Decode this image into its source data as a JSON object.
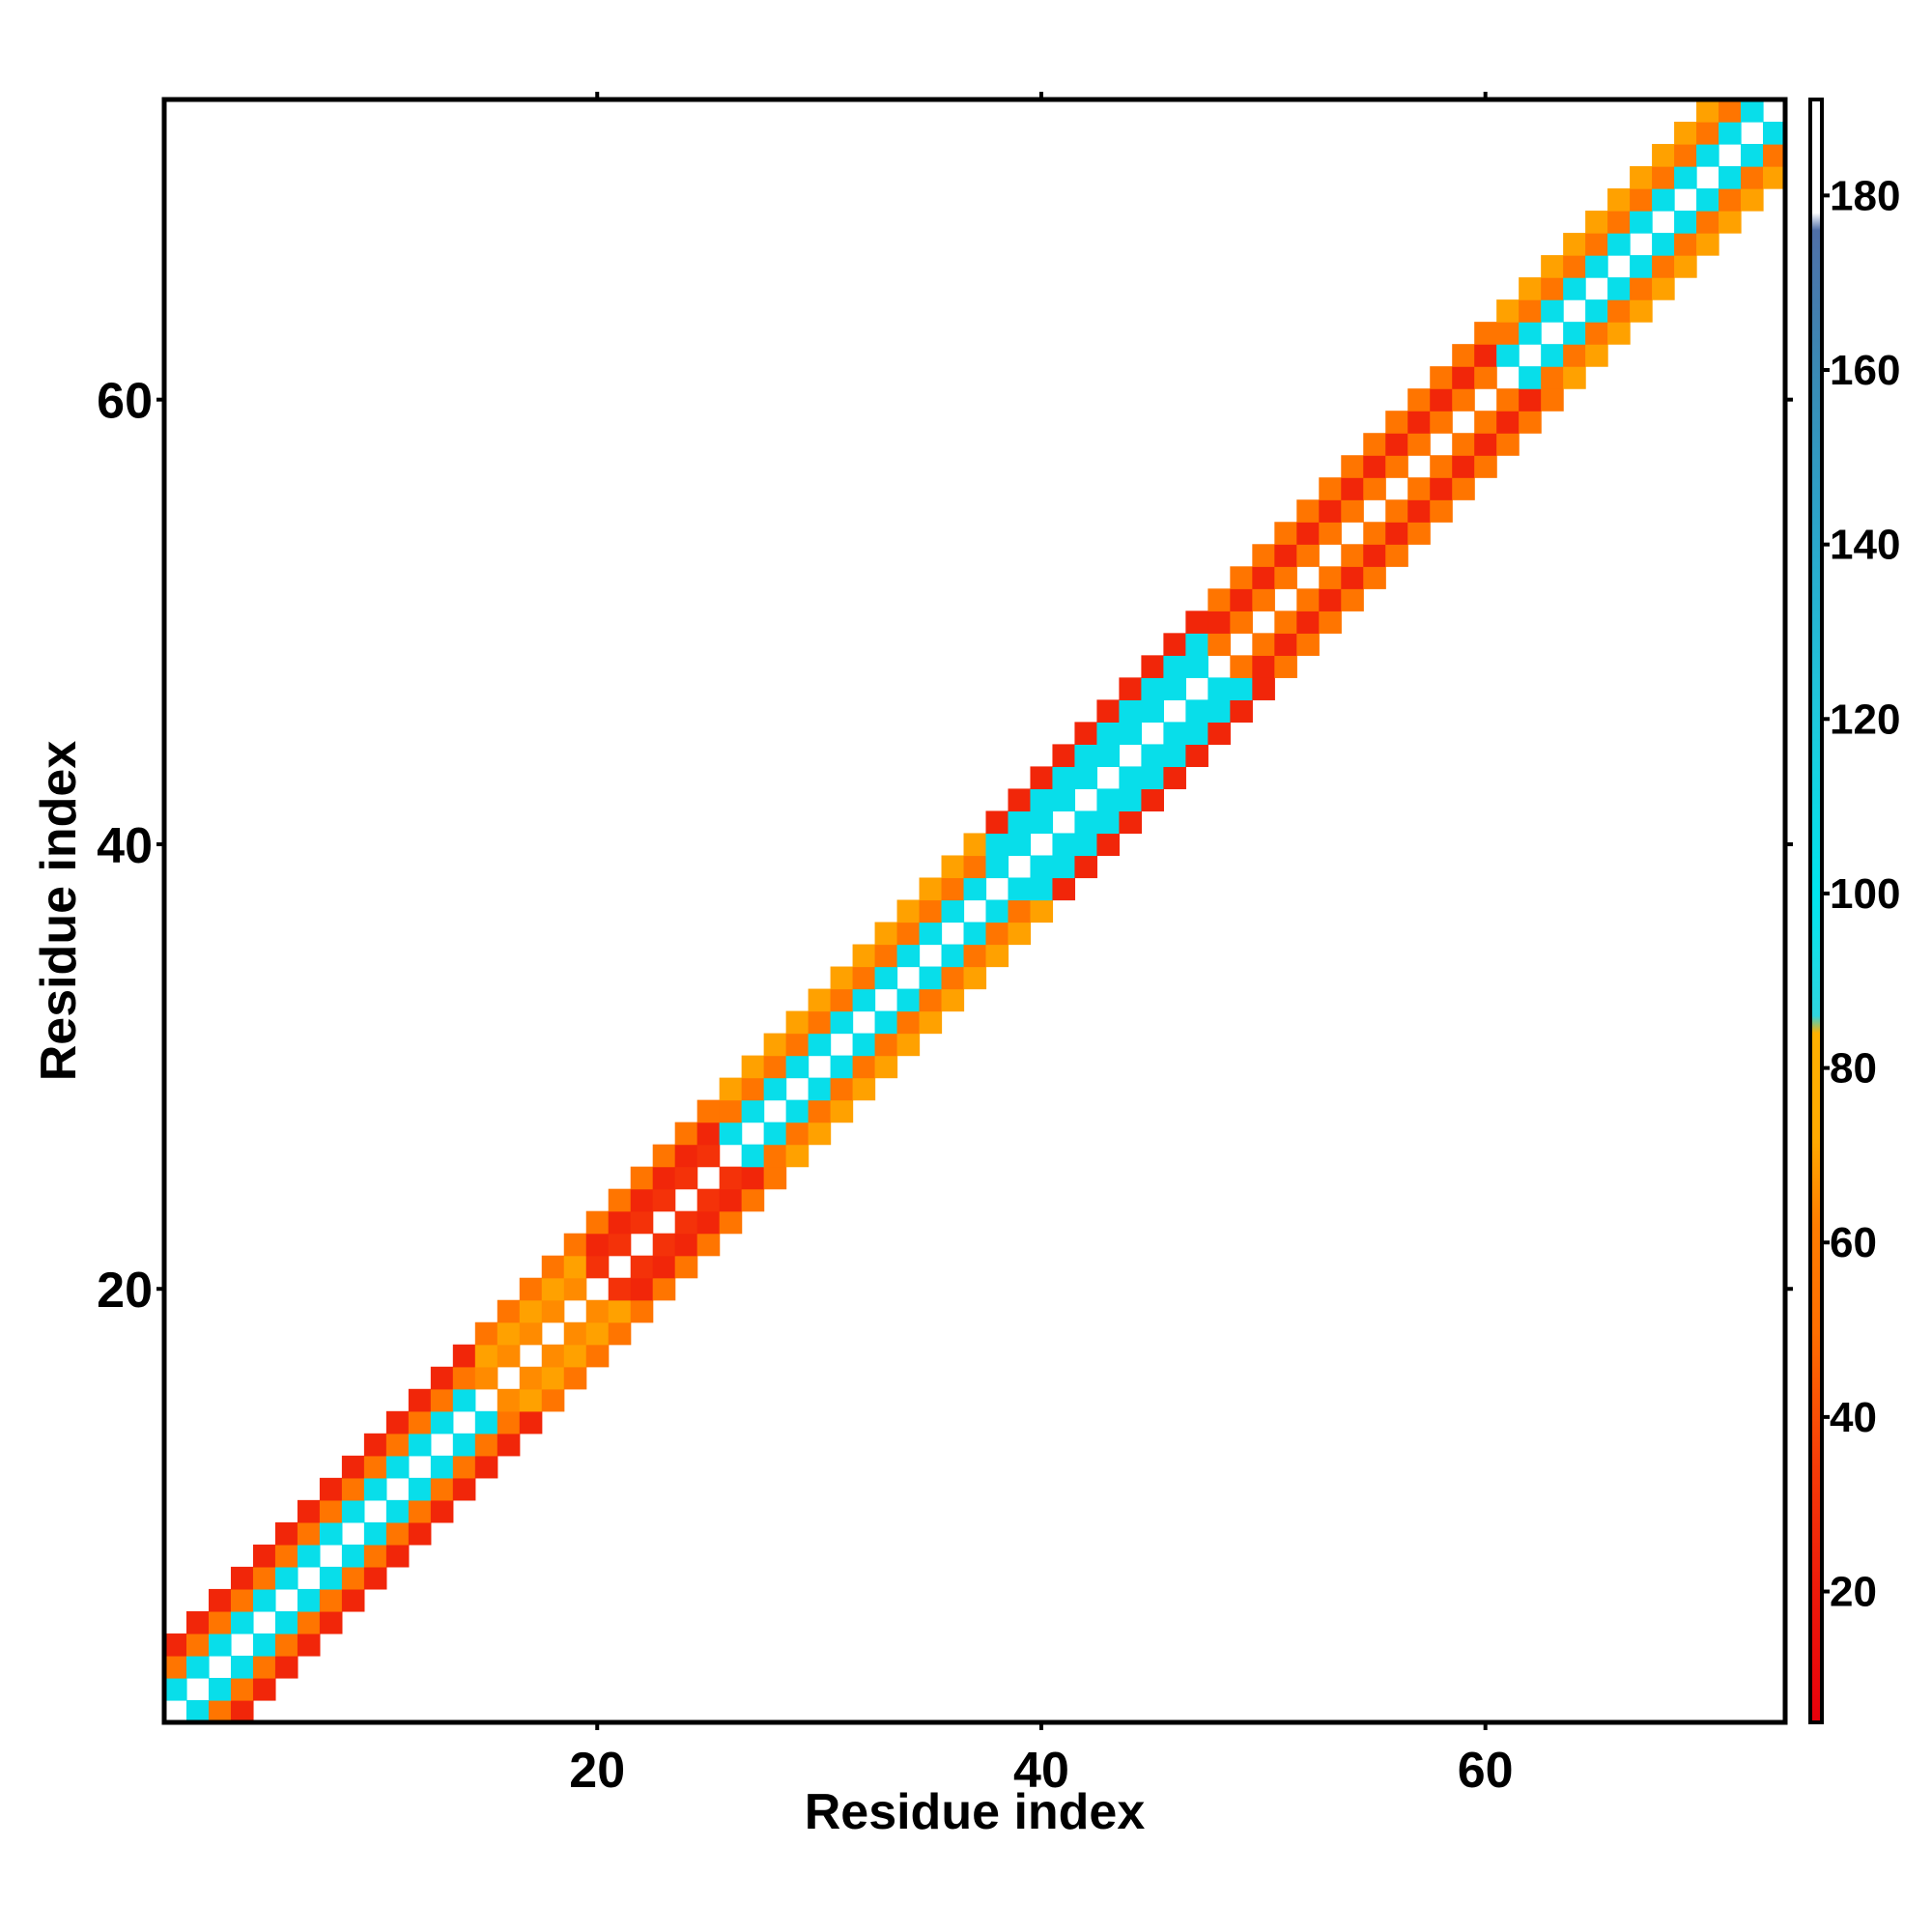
{
  "chart_data": {
    "type": "heatmap",
    "title": "",
    "xlabel": "Residue index",
    "ylabel": "Residue index",
    "xlim": [
      1,
      73
    ],
    "ylim": [
      1,
      73
    ],
    "x_ticks": [
      20,
      40,
      60
    ],
    "y_ticks": [
      20,
      40,
      60
    ],
    "colorbar": {
      "range": [
        5,
        191
      ],
      "ticks": [
        20,
        40,
        60,
        80,
        100,
        120,
        140,
        160,
        180
      ],
      "stops": [
        {
          "value": 5,
          "color": "#e8000b"
        },
        {
          "value": 20,
          "color": "#ee1a0a"
        },
        {
          "value": 35,
          "color": "#f73e08"
        },
        {
          "value": 50,
          "color": "#ff6f00"
        },
        {
          "value": 62,
          "color": "#ff7d00"
        },
        {
          "value": 72,
          "color": "#ffaa00"
        },
        {
          "value": 84,
          "color": "#ffb000"
        },
        {
          "value": 86,
          "color": "#2fd5e0"
        },
        {
          "value": 100,
          "color": "#00e5ee"
        },
        {
          "value": 120,
          "color": "#1fc9dd"
        },
        {
          "value": 140,
          "color": "#2aa8cc"
        },
        {
          "value": 160,
          "color": "#3a8ab5"
        },
        {
          "value": 176,
          "color": "#4f6fa8"
        },
        {
          "value": 178,
          "color": "#ffffff"
        },
        {
          "value": 191,
          "color": "#ffffff"
        }
      ]
    },
    "diagonal_band": {
      "residues": [
        1,
        73
      ],
      "max_offset": 3,
      "offset_values": {
        "1": 105,
        "2": 55,
        "3": 25
      },
      "note_values_per_segment": [
        {
          "from": 1,
          "to": 14,
          "d1": 105,
          "d2": 55,
          "d3": 25
        },
        {
          "from": 15,
          "to": 19,
          "d1": 65,
          "d2": 70,
          "d3": 55
        },
        {
          "from": 20,
          "to": 25,
          "d1": 30,
          "d2": 25,
          "d3": 55
        },
        {
          "from": 26,
          "to": 37,
          "d1": 105,
          "d2": 55,
          "d3": 70
        },
        {
          "from": 38,
          "to": 47,
          "d1": 105,
          "d2": 105,
          "d3": 25
        },
        {
          "from": 48,
          "to": 60,
          "d1": 55,
          "d2": 25,
          "d3": 55
        },
        {
          "from": 61,
          "to": 73,
          "d1": 105,
          "d2": 55,
          "d3": 70
        }
      ]
    }
  }
}
